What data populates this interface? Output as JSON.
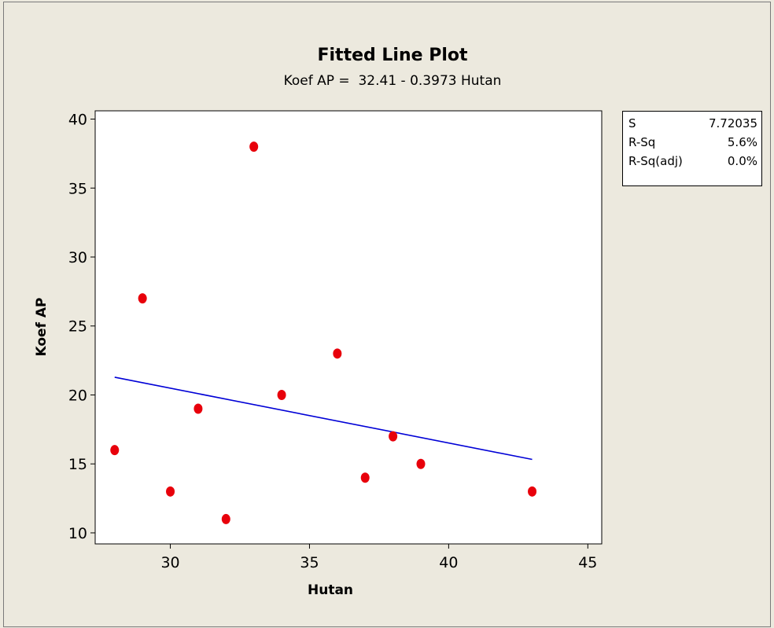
{
  "chart_data": {
    "type": "scatter",
    "title": "Fitted Line Plot",
    "subtitle": "Koef AP =  32.41 - 0.3973 Hutan",
    "xlabel": "Hutan",
    "ylabel": "Koef AP",
    "xlim": [
      27.3,
      45.5
    ],
    "ylim": [
      9.2,
      40.6
    ],
    "xticks": [
      30,
      35,
      40,
      45
    ],
    "yticks": [
      10,
      15,
      20,
      25,
      30,
      35,
      40
    ],
    "points": [
      {
        "x": 28,
        "y": 16
      },
      {
        "x": 29,
        "y": 27
      },
      {
        "x": 30,
        "y": 13
      },
      {
        "x": 31,
        "y": 19
      },
      {
        "x": 32,
        "y": 11
      },
      {
        "x": 33,
        "y": 38
      },
      {
        "x": 34,
        "y": 20
      },
      {
        "x": 36,
        "y": 23
      },
      {
        "x": 37,
        "y": 14
      },
      {
        "x": 38,
        "y": 17
      },
      {
        "x": 39,
        "y": 15
      },
      {
        "x": 43,
        "y": 13
      }
    ],
    "point_color": "#e8000b",
    "fit_line": {
      "intercept": 32.41,
      "slope": -0.3973,
      "x_start": 28,
      "x_end": 43,
      "color": "#0000d6"
    },
    "grid": false,
    "legend": "none"
  },
  "stats": [
    {
      "label": "S",
      "value": "7.72035"
    },
    {
      "label": "R-Sq",
      "value": "5.6%"
    },
    {
      "label": "R-Sq(adj)",
      "value": "0.0%"
    }
  ]
}
